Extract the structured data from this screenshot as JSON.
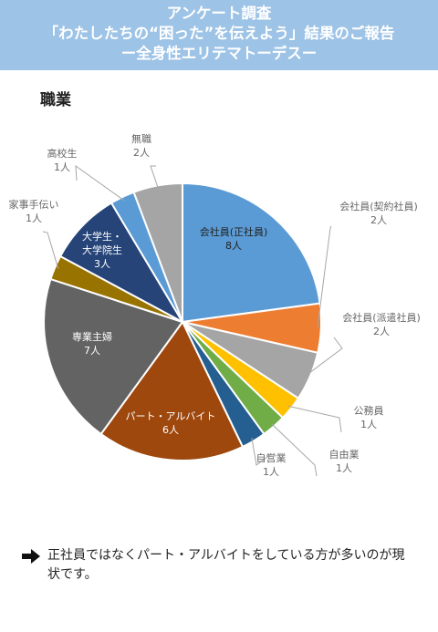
{
  "header": {
    "line1": "アンケート調査",
    "line2": "「わたしたちの“困った”を伝えよう」結果のご報告",
    "line3": "ー全身性エリテマトーデスー"
  },
  "section_title": "職業",
  "note": "正社員ではなくパート・アルバイトをしている方が多いのが現状です。",
  "chart_data": {
    "type": "pie",
    "unit": "人",
    "slices": [
      {
        "label": "会社員(正社員)",
        "value": 8,
        "value_label": "8人",
        "color": "#5b9bd5",
        "label_color": "#222222",
        "label_pos": "inside"
      },
      {
        "label": "会社員(契約社員)",
        "value": 2,
        "value_label": "2人",
        "color": "#ed7d31",
        "label_color": "#666666",
        "label_pos": "outside"
      },
      {
        "label": "会社員(派遣社員)",
        "value": 2,
        "value_label": "2人",
        "color": "#a5a5a5",
        "label_color": "#666666",
        "label_pos": "outside"
      },
      {
        "label": "公務員",
        "value": 1,
        "value_label": "1人",
        "color": "#ffc000",
        "label_color": "#666666",
        "label_pos": "outside"
      },
      {
        "label": "自由業",
        "value": 1,
        "value_label": "1人",
        "color": "#70ad47",
        "label_color": "#666666",
        "label_pos": "outside"
      },
      {
        "label": "自営業",
        "value": 1,
        "value_label": "1人",
        "color": "#255e91",
        "label_color": "#666666",
        "label_pos": "outside"
      },
      {
        "label": "パート・アルバイト",
        "value": 6,
        "value_label": "6人",
        "color": "#9e480e",
        "label_color": "#ffffff",
        "label_pos": "inside"
      },
      {
        "label": "専業主婦",
        "value": 7,
        "value_label": "7人",
        "color": "#636363",
        "label_color": "#ffffff",
        "label_pos": "inside"
      },
      {
        "label": "家事手伝い",
        "value": 1,
        "value_label": "1人",
        "color": "#997300",
        "label_color": "#666666",
        "label_pos": "outside"
      },
      {
        "label": "大学生・大学院生",
        "value": 3,
        "value_label": "3人",
        "color": "#264478",
        "label_color": "#ffffff",
        "label_pos": "inside"
      },
      {
        "label": "高校生",
        "value": 1,
        "value_label": "1人",
        "color": "#5b9bd5",
        "label_color": "#666666",
        "label_pos": "outside"
      },
      {
        "label": "無職",
        "value": 2,
        "value_label": "2人",
        "color": "#a5a5a5",
        "label_color": "#666666",
        "label_pos": "outside"
      }
    ]
  }
}
